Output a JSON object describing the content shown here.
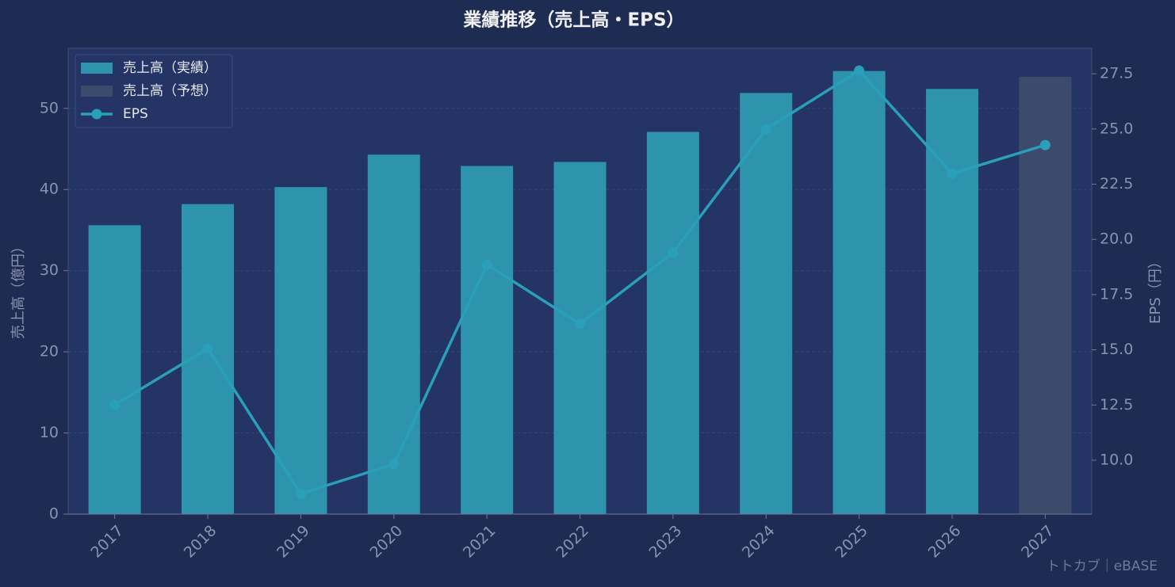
{
  "chart_data": {
    "type": "bar_line",
    "title": "業績推移（売上高・EPS）",
    "y_label": "売上高（億円）",
    "y2_label": "EPS（円）",
    "watermark": "トトカブ｜eBASE",
    "categories": [
      "2017",
      "2018",
      "2019",
      "2020",
      "2021",
      "2022",
      "2023",
      "2024",
      "2025",
      "2026",
      "2027"
    ],
    "series": [
      {
        "name": "売上高（実績）",
        "type": "bar",
        "color": "#2e94ad",
        "values": [
          35.6,
          38.2,
          40.3,
          44.3,
          42.9,
          43.4,
          47.1,
          51.9,
          54.6,
          52.4,
          null
        ]
      },
      {
        "name": "売上高（予想）",
        "type": "bar",
        "color": "#3c4a6b",
        "values": [
          null,
          null,
          null,
          null,
          null,
          null,
          null,
          null,
          null,
          null,
          53.9
        ]
      },
      {
        "name": "EPS",
        "type": "line",
        "axis": "y2",
        "color": "#2a9fba",
        "values": [
          12.51,
          15.06,
          8.49,
          9.82,
          18.86,
          16.17,
          19.4,
          24.99,
          27.64,
          22.98,
          24.27
        ]
      }
    ],
    "ylim": [
      0,
      57.4
    ],
    "yticks": [
      0,
      10,
      20,
      30,
      40,
      50
    ],
    "y2lim": [
      7.56,
      28.65
    ],
    "y2ticks": [
      {
        "value": 10,
        "label": "10.0"
      },
      12.5,
      {
        "value": 15,
        "label": "15.0"
      },
      17.5,
      {
        "value": 20,
        "label": "20.0"
      },
      22.5,
      {
        "value": 25,
        "label": "25.0"
      },
      27.5
    ],
    "grid": true,
    "legend": "upper-left"
  }
}
